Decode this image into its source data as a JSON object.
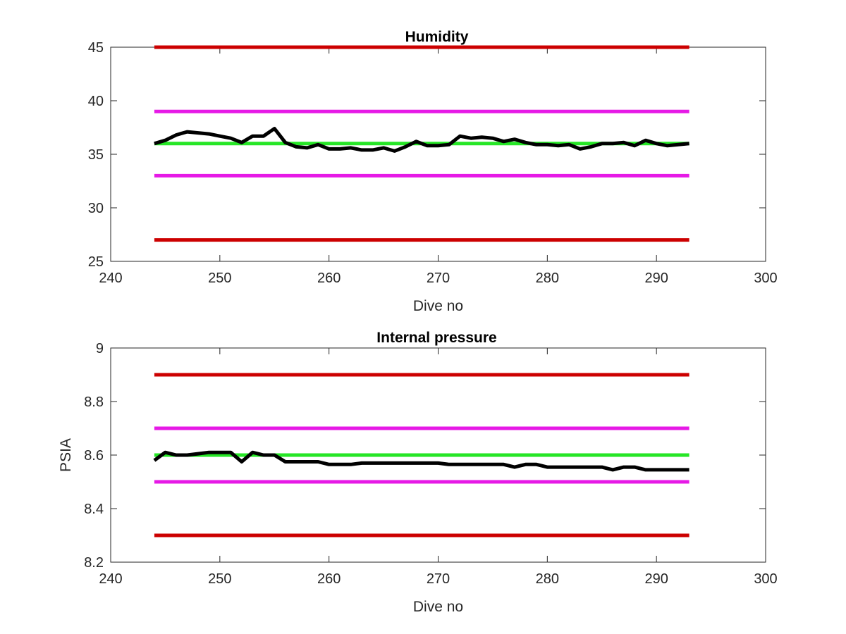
{
  "chart_data": [
    {
      "type": "line",
      "title": "Humidity",
      "xlabel": "Dive no",
      "ylabel": "",
      "xlim": [
        240,
        300
      ],
      "ylim": [
        25,
        45
      ],
      "xticks": [
        240,
        250,
        260,
        270,
        280,
        290,
        300
      ],
      "yticks": [
        25,
        30,
        35,
        40,
        45
      ],
      "grid": false,
      "colors": {
        "limit_outer": "#cc0000",
        "limit_inner": "#e619e6",
        "target": "#26e626",
        "measured": "#000000"
      },
      "reference_lines": [
        {
          "y": 45,
          "x": [
            244,
            293
          ],
          "role": "limit_outer"
        },
        {
          "y": 39,
          "x": [
            244,
            293
          ],
          "role": "limit_inner"
        },
        {
          "y": 36,
          "x": [
            244,
            293
          ],
          "role": "target"
        },
        {
          "y": 33,
          "x": [
            244,
            293
          ],
          "role": "limit_inner"
        },
        {
          "y": 27,
          "x": [
            244,
            293
          ],
          "role": "limit_outer"
        }
      ],
      "series": [
        {
          "x": [
            244,
            245,
            246,
            247,
            248,
            249,
            250,
            251,
            252,
            253,
            254,
            255,
            256,
            257,
            258,
            259,
            260,
            261,
            262,
            263,
            264,
            265,
            266,
            267,
            268,
            269,
            270,
            271,
            272,
            273,
            274,
            275,
            276,
            277,
            278,
            279,
            280,
            281,
            282,
            283,
            284,
            285,
            286,
            287,
            288,
            289,
            290,
            291,
            292,
            293
          ],
          "values": [
            36.0,
            36.3,
            36.8,
            37.1,
            37.0,
            36.9,
            36.7,
            36.5,
            36.1,
            36.7,
            36.7,
            37.4,
            36.1,
            35.7,
            35.6,
            35.9,
            35.5,
            35.5,
            35.6,
            35.4,
            35.4,
            35.6,
            35.3,
            35.7,
            36.2,
            35.8,
            35.8,
            35.9,
            36.7,
            36.5,
            36.6,
            36.5,
            36.2,
            36.4,
            36.1,
            35.9,
            35.9,
            35.8,
            35.9,
            35.5,
            35.7,
            36.0,
            36.0,
            36.1,
            35.8,
            36.3,
            36.0,
            35.8,
            35.9,
            36.0
          ]
        }
      ]
    },
    {
      "type": "line",
      "title": "Internal pressure",
      "xlabel": "Dive no",
      "ylabel": "PSIA",
      "xlim": [
        240,
        300
      ],
      "ylim": [
        8.2,
        9.0
      ],
      "xticks": [
        240,
        250,
        260,
        270,
        280,
        290,
        300
      ],
      "yticks": [
        8.2,
        8.4,
        8.6,
        8.8,
        9.0
      ],
      "ytick_labels": [
        "8.2",
        "8.4",
        "8.6",
        "8.8",
        "9"
      ],
      "grid": false,
      "colors": {
        "limit_outer": "#cc0000",
        "limit_inner": "#e619e6",
        "target": "#26e626",
        "measured": "#000000"
      },
      "reference_lines": [
        {
          "y": 8.9,
          "x": [
            244,
            293
          ],
          "role": "limit_outer"
        },
        {
          "y": 8.7,
          "x": [
            244,
            293
          ],
          "role": "limit_inner"
        },
        {
          "y": 8.6,
          "x": [
            244,
            293
          ],
          "role": "target"
        },
        {
          "y": 8.5,
          "x": [
            244,
            293
          ],
          "role": "limit_inner"
        },
        {
          "y": 8.3,
          "x": [
            244,
            293
          ],
          "role": "limit_outer"
        }
      ],
      "series": [
        {
          "x": [
            244,
            245,
            246,
            247,
            248,
            249,
            250,
            251,
            252,
            253,
            254,
            255,
            256,
            257,
            258,
            259,
            260,
            261,
            262,
            263,
            264,
            265,
            266,
            267,
            268,
            269,
            270,
            271,
            272,
            273,
            274,
            275,
            276,
            277,
            278,
            279,
            280,
            281,
            282,
            283,
            284,
            285,
            286,
            287,
            288,
            289,
            290,
            291,
            292,
            293
          ],
          "values": [
            8.58,
            8.61,
            8.6,
            8.6,
            8.605,
            8.61,
            8.61,
            8.61,
            8.575,
            8.61,
            8.6,
            8.6,
            8.575,
            8.575,
            8.575,
            8.575,
            8.565,
            8.565,
            8.565,
            8.57,
            8.57,
            8.57,
            8.57,
            8.57,
            8.57,
            8.57,
            8.57,
            8.565,
            8.565,
            8.565,
            8.565,
            8.565,
            8.565,
            8.555,
            8.565,
            8.565,
            8.555,
            8.555,
            8.555,
            8.555,
            8.555,
            8.555,
            8.545,
            8.555,
            8.555,
            8.545,
            8.545,
            8.545,
            8.545,
            8.545
          ]
        }
      ]
    }
  ]
}
